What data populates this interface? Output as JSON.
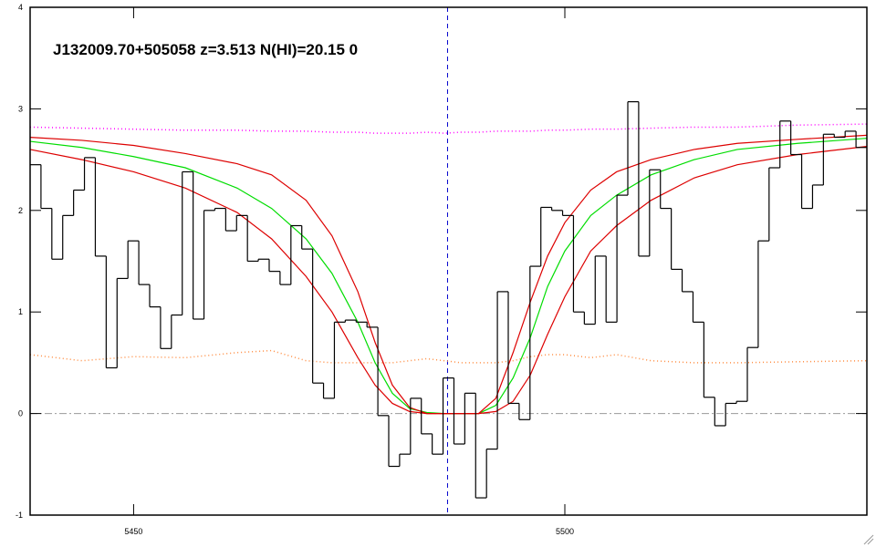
{
  "chart_data": {
    "type": "spectrum",
    "title": "J132009.70+505058 z=3.513 N(HI)=20.15 0",
    "xlim": [
      5438,
      5535.02
    ],
    "ylim": [
      -1,
      4
    ],
    "xticks": [
      5450,
      5500
    ],
    "yticks": [
      -1,
      0,
      1,
      2,
      3,
      4
    ],
    "flux": {
      "color": "#000000",
      "bins": [
        5438.0,
        5439.26,
        5440.52,
        5441.78,
        5443.04,
        5444.3,
        5445.56,
        5446.82,
        5448.08,
        5449.34,
        5450.6,
        5451.86,
        5453.12,
        5454.38,
        5455.64,
        5456.9,
        5458.16,
        5459.42,
        5460.68,
        5461.94,
        5463.2,
        5464.46,
        5465.72,
        5466.98,
        5468.24,
        5469.5,
        5470.76,
        5472.02,
        5473.28,
        5474.54,
        5475.8,
        5477.06,
        5478.32,
        5479.58,
        5480.84,
        5482.1,
        5483.36,
        5484.62,
        5485.88,
        5487.14,
        5488.4,
        5489.66,
        5490.92,
        5492.18,
        5493.44,
        5494.7,
        5495.96,
        5497.22,
        5498.48,
        5499.74,
        5501.0,
        5502.26,
        5503.52,
        5504.78,
        5506.04,
        5507.3,
        5508.56,
        5509.82,
        5511.08,
        5512.34,
        5513.6,
        5514.86,
        5516.12,
        5517.38,
        5518.64,
        5519.9,
        5521.16,
        5522.42,
        5523.68,
        5524.94,
        5526.2,
        5527.46,
        5528.72,
        5529.98,
        5531.24,
        5532.5,
        5533.76,
        5535.02
      ],
      "values": [
        2.45,
        2.02,
        1.52,
        1.95,
        2.2,
        2.52,
        1.55,
        0.45,
        1.33,
        1.7,
        1.27,
        1.05,
        0.64,
        0.97,
        2.38,
        0.93,
        2.0,
        2.02,
        1.8,
        1.95,
        1.5,
        1.52,
        1.4,
        1.27,
        1.85,
        1.62,
        0.3,
        0.15,
        0.9,
        0.92,
        0.9,
        0.85,
        -0.02,
        -0.52,
        -0.4,
        0.15,
        -0.2,
        -0.4,
        0.35,
        -0.3,
        0.2,
        -0.83,
        -0.35,
        1.2,
        0.1,
        -0.06,
        1.45,
        2.03,
        2.0,
        1.95,
        1.0,
        0.88,
        1.55,
        0.9,
        2.15,
        3.07,
        1.55,
        2.4,
        2.02,
        1.42,
        1.2,
        0.9,
        0.16,
        -0.12,
        0.1,
        0.12,
        0.65,
        1.7,
        2.42,
        2.88,
        2.55,
        2.02,
        2.25,
        2.75,
        2.72,
        2.78,
        2.62
      ]
    },
    "x": [
      5438,
      5444,
      5450,
      5456,
      5462,
      5466,
      5470,
      5473,
      5476,
      5478,
      5480,
      5482,
      5484,
      5486,
      5488,
      5490,
      5492,
      5494,
      5496,
      5498,
      5500,
      5503,
      5506,
      5510,
      5515,
      5520,
      5527,
      5535
    ],
    "series": [
      {
        "color": "#ff00ff",
        "style": "dotted",
        "values": [
          2.82,
          2.81,
          2.8,
          2.79,
          2.79,
          2.78,
          2.78,
          2.77,
          2.77,
          2.76,
          2.76,
          2.76,
          2.77,
          2.76,
          2.77,
          2.77,
          2.78,
          2.78,
          2.78,
          2.79,
          2.79,
          2.8,
          2.8,
          2.81,
          2.82,
          2.82,
          2.84,
          2.85
        ]
      },
      {
        "color": "#ff8c40",
        "style": "dotted",
        "values": [
          0.58,
          0.52,
          0.56,
          0.55,
          0.6,
          0.62,
          0.52,
          0.5,
          0.5,
          0.5,
          0.5,
          0.52,
          0.54,
          0.52,
          0.5,
          0.5,
          0.5,
          0.52,
          0.56,
          0.58,
          0.58,
          0.55,
          0.58,
          0.52,
          0.5,
          0.5,
          0.51,
          0.52
        ]
      },
      {
        "color": "#00dd00",
        "style": "solid",
        "values": [
          2.68,
          2.62,
          2.53,
          2.42,
          2.22,
          2.02,
          1.72,
          1.38,
          0.9,
          0.5,
          0.2,
          0.05,
          0.01,
          0,
          0,
          0,
          0.08,
          0.35,
          0.75,
          1.25,
          1.6,
          1.95,
          2.15,
          2.35,
          2.5,
          2.6,
          2.66,
          2.71
        ]
      },
      {
        "color": "#dd0000",
        "style": "solid",
        "values": [
          2.72,
          2.69,
          2.64,
          2.56,
          2.46,
          2.35,
          2.1,
          1.75,
          1.2,
          0.7,
          0.28,
          0.06,
          0,
          0,
          0,
          0,
          0.15,
          0.6,
          1.1,
          1.55,
          1.88,
          2.2,
          2.38,
          2.5,
          2.6,
          2.66,
          2.7,
          2.74
        ]
      },
      {
        "color": "#dd0000",
        "style": "solid",
        "values": [
          2.6,
          2.5,
          2.38,
          2.22,
          1.98,
          1.72,
          1.35,
          1.0,
          0.55,
          0.28,
          0.1,
          0.02,
          0,
          0,
          0,
          0,
          0.02,
          0.12,
          0.38,
          0.78,
          1.15,
          1.6,
          1.85,
          2.1,
          2.32,
          2.45,
          2.55,
          2.63
        ]
      }
    ],
    "vline": {
      "x": 5486.4,
      "color": "#0000cc"
    },
    "hline": {
      "y": 0,
      "color": "#999999"
    }
  }
}
